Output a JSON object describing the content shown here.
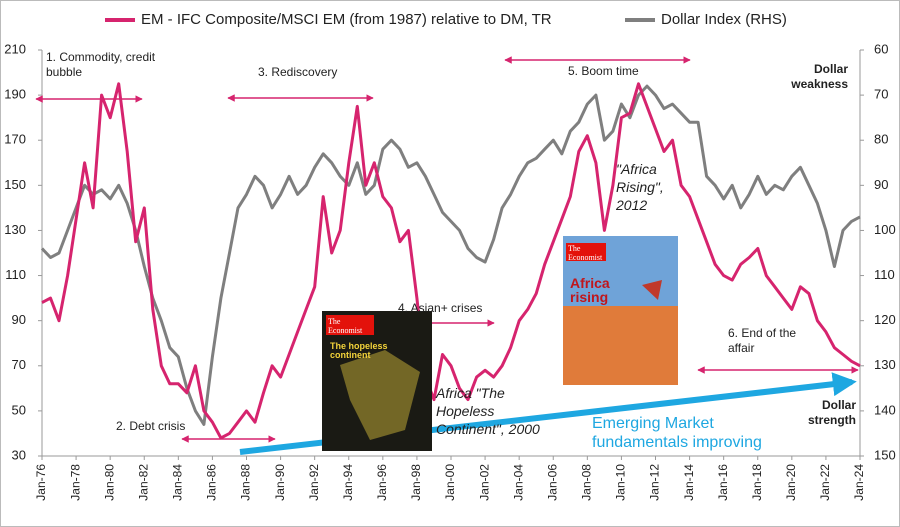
{
  "chart_data": {
    "type": "line",
    "legend_position": "top",
    "x": [
      1976,
      1976.5,
      1977,
      1977.5,
      1978,
      1978.5,
      1979,
      1979.5,
      1980,
      1980.5,
      1981,
      1981.5,
      1982,
      1982.5,
      1983,
      1983.5,
      1984,
      1984.5,
      1985,
      1985.5,
      1986,
      1986.5,
      1987,
      1987.5,
      1988,
      1988.5,
      1989,
      1989.5,
      1990,
      1990.5,
      1991,
      1991.5,
      1992,
      1992.5,
      1993,
      1993.5,
      1994,
      1994.5,
      1995,
      1995.5,
      1996,
      1996.5,
      1997,
      1997.5,
      1998,
      1998.5,
      1999,
      1999.5,
      2000,
      2000.5,
      2001,
      2001.5,
      2002,
      2002.5,
      2003,
      2003.5,
      2004,
      2004.5,
      2005,
      2005.5,
      2006,
      2006.5,
      2007,
      2007.5,
      2008,
      2008.5,
      2009,
      2009.5,
      2010,
      2010.5,
      2011,
      2011.5,
      2012,
      2012.5,
      2013,
      2013.5,
      2014,
      2014.5,
      2015,
      2015.5,
      2016,
      2016.5,
      2017,
      2017.5,
      2018,
      2018.5,
      2019,
      2019.5,
      2020,
      2020.5,
      2021,
      2021.5,
      2022,
      2022.5,
      2023,
      2023.5,
      2024
    ],
    "series": [
      {
        "name": "EM - IFC Composite/MSCI EM (from 1987) relative to DM, TR",
        "color": "#d6246e",
        "axis": "y",
        "values": [
          98,
          100,
          90,
          110,
          135,
          160,
          140,
          190,
          180,
          195,
          165,
          125,
          140,
          95,
          70,
          62,
          62,
          58,
          70,
          50,
          45,
          38,
          40,
          45,
          50,
          45,
          58,
          70,
          65,
          75,
          85,
          95,
          105,
          145,
          120,
          130,
          160,
          185,
          150,
          160,
          145,
          140,
          125,
          130,
          100,
          65,
          55,
          75,
          70,
          60,
          55,
          65,
          68,
          65,
          70,
          78,
          90,
          95,
          102,
          115,
          125,
          135,
          145,
          165,
          172,
          160,
          130,
          150,
          180,
          182,
          195,
          185,
          175,
          165,
          170,
          150,
          145,
          135,
          125,
          115,
          110,
          108,
          115,
          118,
          122,
          110,
          105,
          100,
          95,
          105,
          102,
          90,
          85,
          78,
          75,
          72,
          70
        ]
      },
      {
        "name": "Dollar Index (RHS)",
        "color": "#7f7f7f",
        "axis": "y2",
        "values": [
          104,
          106,
          105,
          100,
          95,
          90,
          92,
          91,
          93,
          90,
          94,
          100,
          108,
          115,
          120,
          126,
          128,
          135,
          140,
          143,
          128,
          115,
          105,
          95,
          92,
          88,
          90,
          95,
          92,
          88,
          92,
          90,
          86,
          83,
          85,
          88,
          90,
          85,
          92,
          90,
          82,
          80,
          82,
          86,
          85,
          88,
          92,
          96,
          98,
          100,
          104,
          106,
          107,
          102,
          95,
          92,
          88,
          85,
          84,
          82,
          80,
          83,
          78,
          76,
          72,
          70,
          80,
          78,
          72,
          75,
          70,
          68,
          70,
          73,
          72,
          74,
          76,
          76,
          88,
          90,
          93,
          90,
          95,
          92,
          88,
          92,
          90,
          91,
          88,
          86,
          90,
          94,
          100,
          108,
          100,
          98,
          97
        ]
      }
    ],
    "xlim": [
      1976,
      2024
    ],
    "xticks": [
      {
        "value": 1976,
        "label": "Jan-76"
      },
      {
        "value": 1978,
        "label": "Jan-78"
      },
      {
        "value": 1980,
        "label": "Jan-80"
      },
      {
        "value": 1982,
        "label": "Jan-82"
      },
      {
        "value": 1984,
        "label": "Jan-84"
      },
      {
        "value": 1986,
        "label": "Jan-86"
      },
      {
        "value": 1988,
        "label": "Jan-88"
      },
      {
        "value": 1990,
        "label": "Jan-90"
      },
      {
        "value": 1992,
        "label": "Jan-92"
      },
      {
        "value": 1994,
        "label": "Jan-94"
      },
      {
        "value": 1996,
        "label": "Jan-96"
      },
      {
        "value": 1998,
        "label": "Jan-98"
      },
      {
        "value": 2000,
        "label": "Jan-00"
      },
      {
        "value": 2002,
        "label": "Jan-02"
      },
      {
        "value": 2004,
        "label": "Jan-04"
      },
      {
        "value": 2006,
        "label": "Jan-06"
      },
      {
        "value": 2008,
        "label": "Jan-08"
      },
      {
        "value": 2010,
        "label": "Jan-10"
      },
      {
        "value": 2012,
        "label": "Jan-12"
      },
      {
        "value": 2014,
        "label": "Jan-14"
      },
      {
        "value": 2016,
        "label": "Jan-16"
      },
      {
        "value": 2018,
        "label": "Jan-18"
      },
      {
        "value": 2020,
        "label": "Jan-20"
      },
      {
        "value": 2022,
        "label": "Jan-22"
      },
      {
        "value": 2024,
        "label": "Jan-24"
      }
    ],
    "ylim": [
      30,
      210
    ],
    "yticks": [
      30,
      50,
      70,
      90,
      110,
      130,
      150,
      170,
      190,
      210
    ],
    "y2lim": [
      150,
      60
    ],
    "y2ticks": [
      60,
      70,
      80,
      90,
      100,
      110,
      120,
      130,
      140,
      150
    ],
    "grid": false,
    "annotations": [
      "1. Commodity, credit bubble",
      "2. Debt crisis",
      "3. Rediscovery",
      "4. Asian+ crises",
      "5. Boom time",
      "6. End of the affair",
      "Dollar weakness",
      "Dollar strength",
      "\"Africa Rising\", 2012",
      "Africa \"The Hopeless Continent\", 2000",
      "Emerging Market fundamentals improving"
    ],
    "covers": [
      {
        "masthead": "The Economist",
        "headline": "The hopeless continent"
      },
      {
        "masthead": "The Economist",
        "headline": "Africa rising"
      }
    ]
  }
}
